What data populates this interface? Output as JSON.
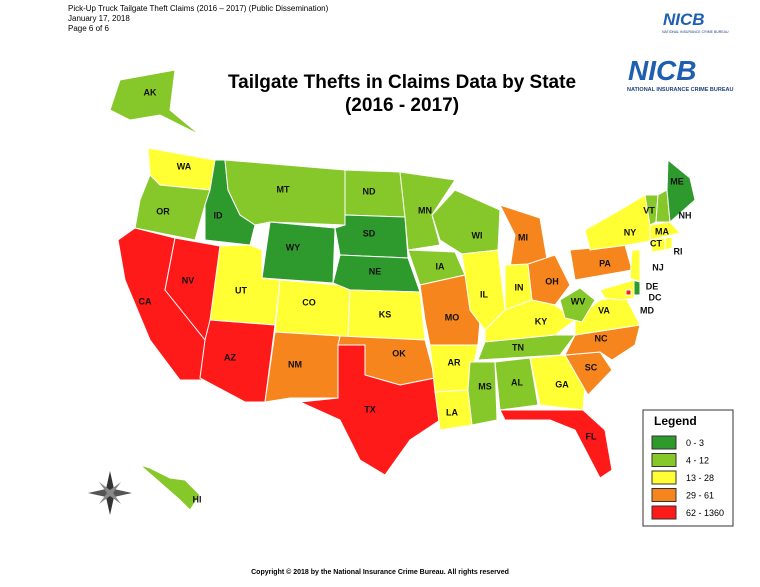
{
  "header": {
    "lines": [
      "Pick-Up Truck Tailgate Theft Claims (2016 – 2017) (Public Dissemination)",
      "January 17, 2018",
      "Page 6 of 6"
    ]
  },
  "logo": {
    "mark": "NICB",
    "tagline": "NATIONAL INSURANCE CRIME BUREAU"
  },
  "title": [
    "Tailgate Thefts in Claims Data by State",
    "(2016 - 2017)"
  ],
  "legend": {
    "title": "Legend",
    "items": [
      {
        "label": "0 - 3",
        "color": "#2e9a2e"
      },
      {
        "label": "4 - 12",
        "color": "#86c829"
      },
      {
        "label": "13 - 28",
        "color": "#ffff33"
      },
      {
        "label": "29 - 61",
        "color": "#f7851e"
      },
      {
        "label": "62 - 1360",
        "color": "#ff1a1a"
      }
    ]
  },
  "states": [
    {
      "label": "WA",
      "level": 2
    },
    {
      "label": "OR",
      "level": 1
    },
    {
      "label": "CA",
      "level": 4
    },
    {
      "label": "NV",
      "level": 4
    },
    {
      "label": "ID",
      "level": 0
    },
    {
      "label": "MT",
      "level": 1
    },
    {
      "label": "WY",
      "level": 0
    },
    {
      "label": "UT",
      "level": 2
    },
    {
      "label": "AZ",
      "level": 4
    },
    {
      "label": "CO",
      "level": 2
    },
    {
      "label": "NM",
      "level": 3
    },
    {
      "label": "ND",
      "level": 1
    },
    {
      "label": "SD",
      "level": 0
    },
    {
      "label": "NE",
      "level": 0
    },
    {
      "label": "KS",
      "level": 2
    },
    {
      "label": "OK",
      "level": 3
    },
    {
      "label": "TX",
      "level": 4
    },
    {
      "label": "MN",
      "level": 1
    },
    {
      "label": "IA",
      "level": 1
    },
    {
      "label": "MO",
      "level": 3
    },
    {
      "label": "AR",
      "level": 2
    },
    {
      "label": "LA",
      "level": 2
    },
    {
      "label": "WI",
      "level": 1
    },
    {
      "label": "IL",
      "level": 2
    },
    {
      "label": "MI",
      "level": 3
    },
    {
      "label": "IN",
      "level": 2
    },
    {
      "label": "OH",
      "level": 3
    },
    {
      "label": "KY",
      "level": 2
    },
    {
      "label": "TN",
      "level": 1
    },
    {
      "label": "MS",
      "level": 1
    },
    {
      "label": "AL",
      "level": 1
    },
    {
      "label": "GA",
      "level": 2
    },
    {
      "label": "FL",
      "level": 4
    },
    {
      "label": "SC",
      "level": 3
    },
    {
      "label": "NC",
      "level": 3
    },
    {
      "label": "VA",
      "level": 2
    },
    {
      "label": "WV",
      "level": 1
    },
    {
      "label": "PA",
      "level": 3
    },
    {
      "label": "NY",
      "level": 2
    },
    {
      "label": "VT",
      "level": 1
    },
    {
      "label": "NH",
      "level": 1
    },
    {
      "label": "ME",
      "level": 0
    },
    {
      "label": "MA",
      "level": 2
    },
    {
      "label": "CT",
      "level": 2
    },
    {
      "label": "RI",
      "level": 2
    },
    {
      "label": "NJ",
      "level": 2
    },
    {
      "label": "DE",
      "level": 0
    },
    {
      "label": "MD",
      "level": 2
    },
    {
      "label": "DC",
      "level": 4
    },
    {
      "label": "AK",
      "level": 1
    },
    {
      "label": "HI",
      "level": 1
    }
  ],
  "footer": "Copyright © 2018 by the National Insurance Crime Bureau.  All rights reserved"
}
